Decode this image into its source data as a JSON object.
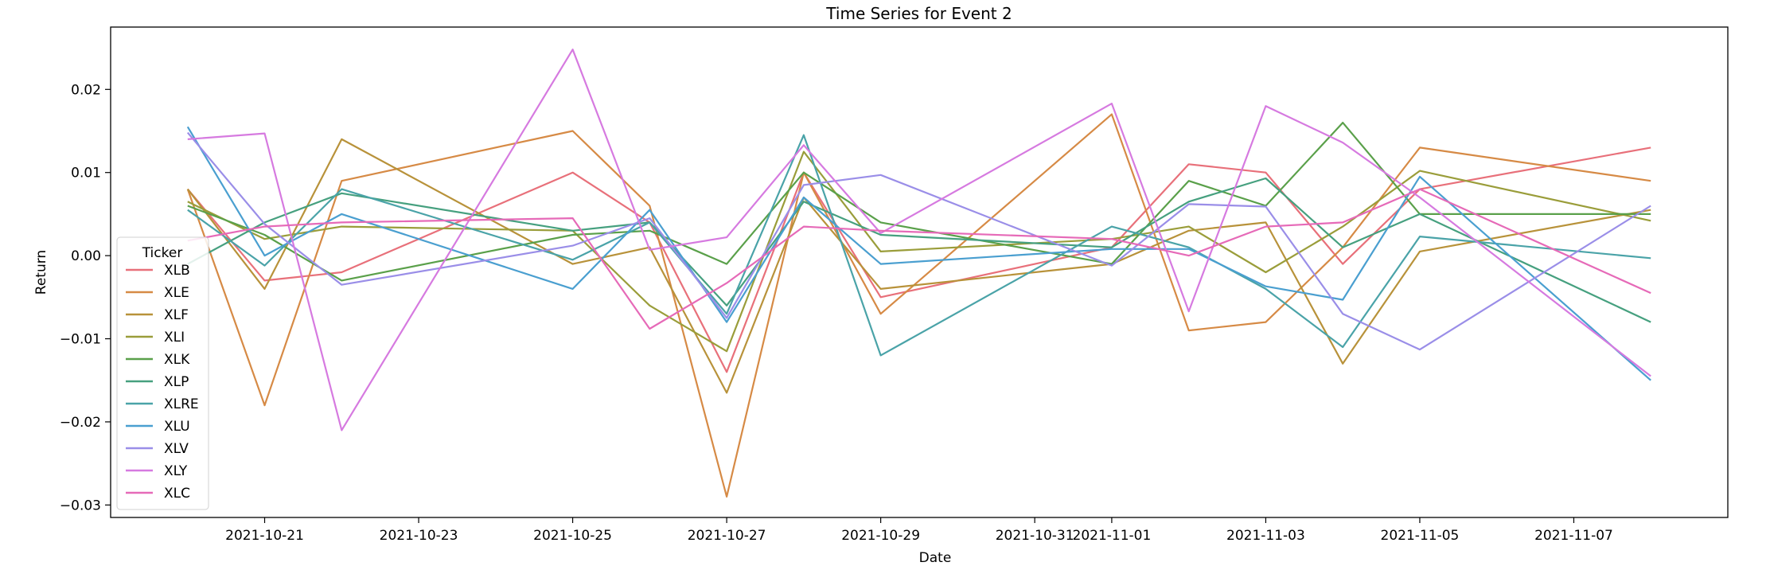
{
  "chart_data": {
    "type": "line",
    "title": "Time Series for Event 2",
    "xlabel": "Date",
    "ylabel": "Return",
    "x": [
      "2021-10-20",
      "2021-10-21",
      "2021-10-22",
      "2021-10-25",
      "2021-10-26",
      "2021-10-27",
      "2021-10-28",
      "2021-10-29",
      "2021-11-01",
      "2021-11-02",
      "2021-11-03",
      "2021-11-04",
      "2021-11-05",
      "2021-11-08"
    ],
    "xlim": [
      "2021-10-19",
      "2021-11-09"
    ],
    "ylim": [
      -0.0315,
      0.0275
    ],
    "x_ticks": [
      "2021-10-21",
      "2021-10-23",
      "2021-10-25",
      "2021-10-27",
      "2021-10-29",
      "2021-10-31",
      "2021-11-01",
      "2021-11-03",
      "2021-11-05",
      "2021-11-07"
    ],
    "y_ticks": [
      -0.03,
      -0.02,
      -0.01,
      0.0,
      0.01,
      0.02
    ],
    "y_tick_labels": [
      "−0.03",
      "−0.02",
      "−0.01",
      "0.00",
      "0.01",
      "0.02"
    ],
    "grid": false,
    "legend": {
      "title": "Ticker",
      "placement": "lower-left"
    },
    "series": [
      {
        "name": "XLB",
        "color": "#e8707a",
        "values": [
          0.008,
          -0.003,
          -0.002,
          0.01,
          0.004,
          -0.014,
          0.01,
          -0.005,
          0.001,
          0.011,
          0.01,
          -0.001,
          0.008,
          0.013
        ]
      },
      {
        "name": "XLE",
        "color": "#d68a45",
        "values": [
          0.008,
          -0.018,
          0.009,
          0.015,
          0.006,
          -0.029,
          0.01,
          -0.007,
          0.017,
          -0.009,
          -0.008,
          0.001,
          0.013,
          0.009
        ]
      },
      {
        "name": "XLF",
        "color": "#b8923a",
        "values": [
          0.008,
          -0.004,
          0.014,
          -0.001,
          0.001,
          -0.0165,
          0.007,
          -0.004,
          -0.001,
          0.003,
          0.004,
          -0.013,
          0.0005,
          0.0055
        ]
      },
      {
        "name": "XLI",
        "color": "#9a9d3a",
        "values": [
          0.0065,
          0.002,
          0.0035,
          0.003,
          -0.006,
          -0.0115,
          0.0125,
          0.0005,
          0.002,
          0.0035,
          -0.002,
          0.0035,
          0.0102,
          0.0042
        ]
      },
      {
        "name": "XLK",
        "color": "#5aa04a",
        "values": [
          0.006,
          0.0025,
          -0.003,
          0.0025,
          0.003,
          -0.001,
          0.01,
          0.004,
          -0.001,
          0.009,
          0.006,
          0.016,
          0.005,
          0.005
        ]
      },
      {
        "name": "XLP",
        "color": "#46a07f",
        "values": [
          -0.001,
          0.004,
          0.0075,
          0.003,
          0.004,
          -0.006,
          0.0065,
          0.0025,
          0.001,
          0.0065,
          0.0093,
          0.001,
          0.005,
          -0.008
        ]
      },
      {
        "name": "XLRE",
        "color": "#4aa3a8",
        "values": [
          0.0055,
          -0.0012,
          0.008,
          -0.0005,
          0.004,
          -0.007,
          0.0145,
          -0.012,
          0.0035,
          0.001,
          -0.004,
          -0.011,
          0.0023,
          -0.0003
        ]
      },
      {
        "name": "XLU",
        "color": "#4a9fd0",
        "values": [
          0.0155,
          0.0,
          0.005,
          -0.004,
          0.0055,
          -0.008,
          0.007,
          -0.001,
          0.0008,
          0.0008,
          -0.0037,
          -0.0053,
          0.0095,
          -0.015
        ]
      },
      {
        "name": "XLV",
        "color": "#9a8ee8",
        "values": [
          0.0148,
          0.0038,
          -0.0035,
          0.0012,
          0.0045,
          -0.0075,
          0.0085,
          0.0097,
          -0.0012,
          0.0062,
          0.0059,
          -0.007,
          -0.0113,
          0.006
        ]
      },
      {
        "name": "XLY",
        "color": "#d67ae0",
        "values": [
          0.014,
          0.0147,
          -0.021,
          0.0248,
          0.0007,
          0.0022,
          0.0133,
          0.0027,
          0.0183,
          -0.0067,
          0.018,
          0.0136,
          0.007,
          -0.0145
        ]
      },
      {
        "name": "XLC",
        "color": "#e66ab8",
        "values": [
          0.0018,
          0.0035,
          0.004,
          0.0045,
          -0.0088,
          -0.0033,
          0.0035,
          0.003,
          0.002,
          0.0,
          0.0035,
          0.004,
          0.008,
          -0.0045
        ]
      }
    ]
  }
}
